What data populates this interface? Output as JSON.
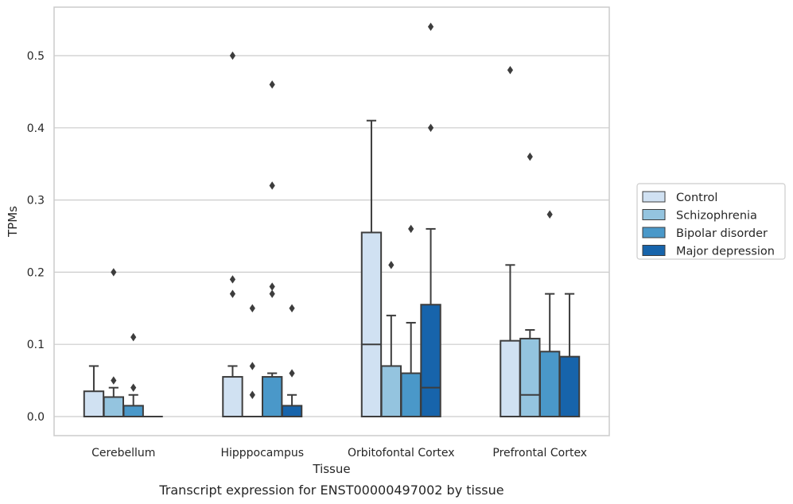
{
  "chart_data": {
    "type": "box",
    "title": "",
    "caption": "Transcript expression for ENST00000497002 by tissue",
    "xlabel": "Tissue",
    "ylabel": "TPMs",
    "ylim": [
      -0.026,
      0.568
    ],
    "yticks": [
      "0.0",
      "0.1",
      "0.2",
      "0.3",
      "0.4",
      "0.5"
    ],
    "grid": "horizontal",
    "legend_position": "right",
    "categories": [
      "Cerebellum",
      "Hipppocampus",
      "Orbitofontal Cortex",
      "Prefrontal Cortex"
    ],
    "series": [
      {
        "name": "Control",
        "color": "#d0e1f2",
        "boxes": [
          {
            "q1": 0,
            "median": 0,
            "q3": 0.035,
            "whisker_low": 0,
            "whisker_high": 0.07,
            "outliers": []
          },
          {
            "q1": 0,
            "median": 0,
            "q3": 0.055,
            "whisker_low": 0,
            "whisker_high": 0.07,
            "outliers": [
              0.5,
              0.19,
              0.17
            ]
          },
          {
            "q1": 0,
            "median": 0.1,
            "q3": 0.255,
            "whisker_low": 0,
            "whisker_high": 0.41,
            "outliers": []
          },
          {
            "q1": 0,
            "median": 0,
            "q3": 0.105,
            "whisker_low": 0,
            "whisker_high": 0.21,
            "outliers": [
              0.48
            ]
          }
        ]
      },
      {
        "name": "Schizophrenia",
        "color": "#94c4df",
        "boxes": [
          {
            "q1": 0,
            "median": 0,
            "q3": 0.027,
            "whisker_low": 0,
            "whisker_high": 0.04,
            "outliers": [
              0.2,
              0.05
            ]
          },
          {
            "q1": 0,
            "median": 0,
            "q3": 0,
            "whisker_low": 0,
            "whisker_high": 0,
            "outliers": [
              0.15,
              0.07,
              0.03
            ]
          },
          {
            "q1": 0,
            "median": 0,
            "q3": 0.07,
            "whisker_low": 0,
            "whisker_high": 0.14,
            "outliers": [
              0.21
            ]
          },
          {
            "q1": 0,
            "median": 0.03,
            "q3": 0.108,
            "whisker_low": 0,
            "whisker_high": 0.12,
            "outliers": [
              0.36
            ]
          }
        ]
      },
      {
        "name": "Bipolar disorder",
        "color": "#4a98c9",
        "boxes": [
          {
            "q1": 0,
            "median": 0,
            "q3": 0.015,
            "whisker_low": 0,
            "whisker_high": 0.03,
            "outliers": [
              0.11,
              0.04
            ]
          },
          {
            "q1": 0,
            "median": 0,
            "q3": 0.055,
            "whisker_low": 0,
            "whisker_high": 0.06,
            "outliers": [
              0.46,
              0.32,
              0.18,
              0.17
            ]
          },
          {
            "q1": 0,
            "median": 0,
            "q3": 0.06,
            "whisker_low": 0,
            "whisker_high": 0.13,
            "outliers": [
              0.26
            ]
          },
          {
            "q1": 0,
            "median": 0,
            "q3": 0.09,
            "whisker_low": 0,
            "whisker_high": 0.17,
            "outliers": [
              0.28
            ]
          }
        ]
      },
      {
        "name": "Major depression",
        "color": "#1764ab",
        "boxes": [
          {
            "q1": 0,
            "median": 0,
            "q3": 0,
            "whisker_low": 0,
            "whisker_high": 0,
            "outliers": []
          },
          {
            "q1": 0,
            "median": 0,
            "q3": 0.015,
            "whisker_low": 0,
            "whisker_high": 0.03,
            "outliers": [
              0.15,
              0.06
            ]
          },
          {
            "q1": 0,
            "median": 0.04,
            "q3": 0.155,
            "whisker_low": 0,
            "whisker_high": 0.26,
            "outliers": [
              0.54,
              0.4
            ]
          },
          {
            "q1": 0,
            "median": 0,
            "q3": 0.083,
            "whisker_low": 0,
            "whisker_high": 0.17,
            "outliers": []
          }
        ]
      }
    ]
  }
}
